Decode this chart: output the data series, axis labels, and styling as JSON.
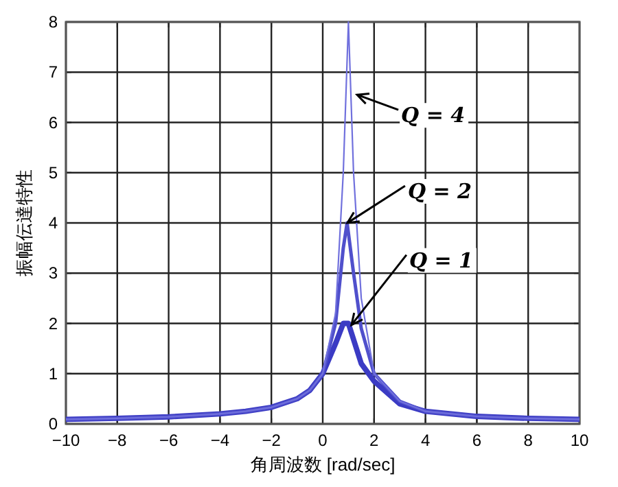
{
  "chart_data": {
    "type": "line",
    "xlabel": "角周波数 [rad/sec]",
    "ylabel": "振幅伝達特性",
    "xlim": [
      -10,
      10
    ],
    "ylim": [
      0,
      8
    ],
    "xticks": [
      -10,
      -8,
      -6,
      -4,
      -2,
      0,
      2,
      4,
      6,
      8,
      10
    ],
    "yticks": [
      0,
      1,
      2,
      3,
      4,
      5,
      6,
      7,
      8
    ],
    "grid": true,
    "series": [
      {
        "color": "#3b3bc4",
        "x": [
          -10,
          -8,
          -6,
          -4,
          -3,
          -2,
          -1,
          -0.5,
          0,
          0.5,
          0.8,
          1.0,
          1.5,
          2,
          3,
          4,
          6,
          8,
          10
        ],
        "values": [
          0.09,
          0.11,
          0.14,
          0.2,
          0.25,
          0.33,
          0.5,
          0.67,
          1,
          1.6,
          2.0,
          2.0,
          1.2,
          0.85,
          0.4,
          0.25,
          0.15,
          0.11,
          0.09
        ]
      },
      {
        "color": "#5050cc",
        "x": [
          -10,
          -8,
          -6,
          -4,
          -3,
          -2,
          -1,
          -0.5,
          0,
          0.5,
          0.8,
          0.95,
          1.2,
          1.5,
          2,
          3,
          4,
          6,
          8,
          10
        ],
        "values": [
          0.09,
          0.11,
          0.14,
          0.2,
          0.25,
          0.33,
          0.5,
          0.67,
          1,
          2.0,
          3.5,
          4.0,
          3.0,
          1.9,
          1.0,
          0.45,
          0.25,
          0.15,
          0.11,
          0.09
        ]
      },
      {
        "color": "#7070dd",
        "x": [
          -10,
          -8,
          -6,
          -4,
          -3,
          -2,
          -1,
          -0.5,
          0,
          0.5,
          0.8,
          1.0,
          1.2,
          1.5,
          2,
          3,
          4,
          6,
          8,
          10
        ],
        "values": [
          0.09,
          0.11,
          0.14,
          0.2,
          0.25,
          0.33,
          0.5,
          0.67,
          1,
          2.2,
          5.0,
          8.0,
          5.0,
          2.5,
          1.0,
          0.45,
          0.25,
          0.15,
          0.11,
          0.09
        ]
      }
    ],
    "annotations": [
      {
        "text": "Q = 4",
        "x": 1.34,
        "y": 6.55
      },
      {
        "text": "Q = 2",
        "x": 0.96,
        "y": 4.0
      },
      {
        "text": "Q = 1",
        "x": 1.12,
        "y": 1.97
      }
    ]
  }
}
